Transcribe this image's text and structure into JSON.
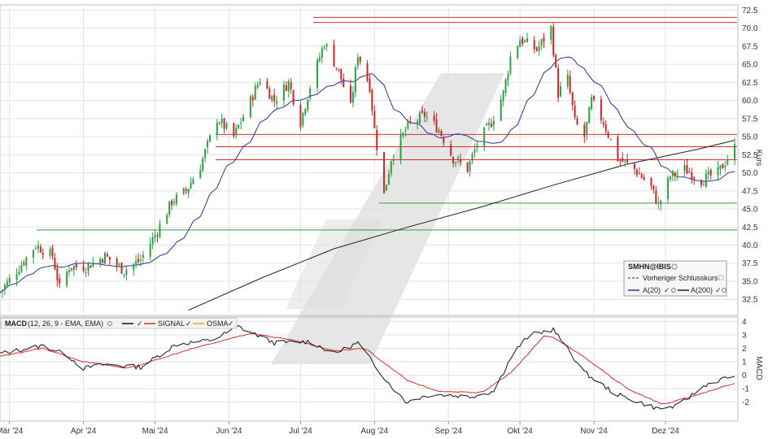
{
  "colors": {
    "up": "#2ea043",
    "down": "#c62828",
    "sma20": "#2b2f9e",
    "sma200": "#222222",
    "macd": "#111111",
    "signal": "#d32f2f",
    "osma": "#f0a030",
    "resistance": "#d32f2f",
    "support": "#3a9a3a",
    "grid": "#e3e3e3",
    "watermark": "#e6e6e6"
  },
  "legend": {
    "symbol": "SMHN@IBIS",
    "prev_close": "Vorheriger Schlusskurs",
    "sma20": "A(20)",
    "sma200": "A(200)"
  },
  "macd_legend": {
    "name": "MACD",
    "params": "(12, 26, 9 - EMA, EMA)",
    "signal": "SIGNAL",
    "osma": "OSMA"
  },
  "chart_data": {
    "type": "candlestick",
    "price_axis": {
      "label": "Kurs",
      "ylim": [
        30.5,
        73.0
      ],
      "ticks": [
        "32.5",
        "35.0",
        "37.5",
        "40.0",
        "42.5",
        "45.0",
        "47.5",
        "50.0",
        "52.5",
        "55.0",
        "57.5",
        "60.0",
        "62.5",
        "65.0",
        "67.5",
        "70.0",
        "72.5"
      ]
    },
    "macd_axis": {
      "label": "MACD",
      "ylim": [
        -3.3,
        4.2
      ],
      "ticks": [
        "4",
        "3",
        "2",
        "1",
        "0",
        "-1",
        "-2"
      ]
    },
    "x_axis": {
      "range": [
        "2024-02-26",
        "2024-12-31"
      ],
      "month_ticks": [
        {
          "label": "Mär '24",
          "date": "2024-03-01"
        },
        {
          "label": "Apr '24",
          "date": "2024-04-01"
        },
        {
          "label": "Mai '24",
          "date": "2024-05-01"
        },
        {
          "label": "Jun '24",
          "date": "2024-06-01"
        },
        {
          "label": "Jul '24",
          "date": "2024-07-01"
        },
        {
          "label": "Aug '24",
          "date": "2024-08-01"
        },
        {
          "label": "Sep '24",
          "date": "2024-09-01"
        },
        {
          "label": "Okt '24",
          "date": "2024-10-01"
        },
        {
          "label": "Nov '24",
          "date": "2024-11-01"
        },
        {
          "label": "Dez '24",
          "date": "2024-12-01"
        }
      ]
    },
    "price_waypoints": [
      [
        "2024-02-26",
        33.5
      ],
      [
        "2024-03-04",
        36.5
      ],
      [
        "2024-03-12",
        40.0
      ],
      [
        "2024-03-19",
        38.5
      ],
      [
        "2024-03-22",
        34.0
      ],
      [
        "2024-03-26",
        37.0
      ],
      [
        "2024-04-02",
        37.0
      ],
      [
        "2024-04-10",
        38.5
      ],
      [
        "2024-04-18",
        36.5
      ],
      [
        "2024-04-25",
        38.0
      ],
      [
        "2024-05-02",
        42.0
      ],
      [
        "2024-05-08",
        46.0
      ],
      [
        "2024-05-14",
        47.5
      ],
      [
        "2024-05-20",
        51.0
      ],
      [
        "2024-05-27",
        57.5
      ],
      [
        "2024-06-03",
        55.0
      ],
      [
        "2024-06-10",
        60.0
      ],
      [
        "2024-06-14",
        63.0
      ],
      [
        "2024-06-20",
        60.0
      ],
      [
        "2024-06-26",
        62.5
      ],
      [
        "2024-07-01",
        57.0
      ],
      [
        "2024-07-05",
        62.0
      ],
      [
        "2024-07-11",
        68.0
      ],
      [
        "2024-07-17",
        64.0
      ],
      [
        "2024-07-22",
        59.0
      ],
      [
        "2024-07-25",
        66.5
      ],
      [
        "2024-07-30",
        62.0
      ],
      [
        "2024-08-01",
        56.0
      ],
      [
        "2024-08-05",
        47.0
      ],
      [
        "2024-08-08",
        52.0
      ],
      [
        "2024-08-15",
        56.5
      ],
      [
        "2024-08-22",
        58.0
      ],
      [
        "2024-08-28",
        56.0
      ],
      [
        "2024-09-03",
        52.0
      ],
      [
        "2024-09-09",
        50.5
      ],
      [
        "2024-09-13",
        54.0
      ],
      [
        "2024-09-19",
        57.0
      ],
      [
        "2024-09-24",
        61.0
      ],
      [
        "2024-09-27",
        66.0
      ],
      [
        "2024-10-01",
        68.5
      ],
      [
        "2024-10-08",
        67.0
      ],
      [
        "2024-10-14",
        70.0
      ],
      [
        "2024-10-17",
        61.0
      ],
      [
        "2024-10-21",
        63.0
      ],
      [
        "2024-10-24",
        57.0
      ],
      [
        "2024-10-28",
        55.0
      ],
      [
        "2024-10-31",
        60.0
      ],
      [
        "2024-11-05",
        57.0
      ],
      [
        "2024-11-11",
        52.0
      ],
      [
        "2024-11-18",
        50.5
      ],
      [
        "2024-11-25",
        48.0
      ],
      [
        "2024-11-28",
        45.5
      ],
      [
        "2024-12-03",
        49.5
      ],
      [
        "2024-12-09",
        50.5
      ],
      [
        "2024-12-16",
        49.0
      ],
      [
        "2024-12-23",
        50.0
      ],
      [
        "2024-12-30",
        53.5
      ]
    ],
    "horizontal_lines": [
      {
        "value": 71.5,
        "color": "resistance"
      },
      {
        "value": 70.8,
        "color": "resistance"
      },
      {
        "value": 55.3,
        "color": "resistance"
      },
      {
        "value": 53.6,
        "color": "resistance"
      },
      {
        "value": 51.8,
        "color": "resistance"
      },
      {
        "value": 45.8,
        "color": "support"
      },
      {
        "value": 42.1,
        "color": "support"
      }
    ],
    "sma200_line": [
      [
        "2024-05-15",
        31.0
      ],
      [
        "2024-06-15",
        35.5
      ],
      [
        "2024-07-15",
        39.5
      ],
      [
        "2024-08-15",
        42.5
      ],
      [
        "2024-09-15",
        45.3
      ],
      [
        "2024-10-15",
        48.3
      ],
      [
        "2024-11-15",
        51.2
      ],
      [
        "2024-12-15",
        53.3
      ],
      [
        "2024-12-30",
        54.5
      ]
    ],
    "macd_waypoints": [
      [
        "2024-02-26",
        1.6
      ],
      [
        "2024-03-15",
        2.2
      ],
      [
        "2024-03-25",
        1.5
      ],
      [
        "2024-04-01",
        0.5
      ],
      [
        "2024-04-10",
        0.8
      ],
      [
        "2024-04-25",
        0.6
      ],
      [
        "2024-05-10",
        2.3
      ],
      [
        "2024-05-25",
        2.6
      ],
      [
        "2024-06-05",
        3.6
      ],
      [
        "2024-06-20",
        2.4
      ],
      [
        "2024-07-05",
        2.5
      ],
      [
        "2024-07-15",
        1.6
      ],
      [
        "2024-07-25",
        2.4
      ],
      [
        "2024-08-07",
        -0.6
      ],
      [
        "2024-08-14",
        -2.0
      ],
      [
        "2024-08-25",
        -1.4
      ],
      [
        "2024-09-10",
        -1.6
      ],
      [
        "2024-09-20",
        -1.2
      ],
      [
        "2024-09-28",
        1.6
      ],
      [
        "2024-10-05",
        3.0
      ],
      [
        "2024-10-15",
        3.4
      ],
      [
        "2024-10-28",
        0.2
      ],
      [
        "2024-11-10",
        -1.4
      ],
      [
        "2024-11-28",
        -2.5
      ],
      [
        "2024-12-06",
        -2.3
      ],
      [
        "2024-12-18",
        -0.7
      ],
      [
        "2024-12-30",
        0.0
      ]
    ],
    "signal_waypoints": [
      [
        "2024-02-26",
        1.4
      ],
      [
        "2024-03-15",
        2.0
      ],
      [
        "2024-04-01",
        1.0
      ],
      [
        "2024-04-20",
        0.5
      ],
      [
        "2024-05-15",
        1.9
      ],
      [
        "2024-06-10",
        3.1
      ],
      [
        "2024-07-01",
        2.5
      ],
      [
        "2024-07-15",
        1.8
      ],
      [
        "2024-07-28",
        2.0
      ],
      [
        "2024-08-15",
        -0.4
      ],
      [
        "2024-08-28",
        -1.2
      ],
      [
        "2024-09-15",
        -1.3
      ],
      [
        "2024-09-28",
        0.3
      ],
      [
        "2024-10-12",
        3.1
      ],
      [
        "2024-10-25",
        1.7
      ],
      [
        "2024-11-15",
        -1.0
      ],
      [
        "2024-11-30",
        -2.2
      ],
      [
        "2024-12-10",
        -1.7
      ],
      [
        "2024-12-30",
        -0.6
      ]
    ]
  }
}
